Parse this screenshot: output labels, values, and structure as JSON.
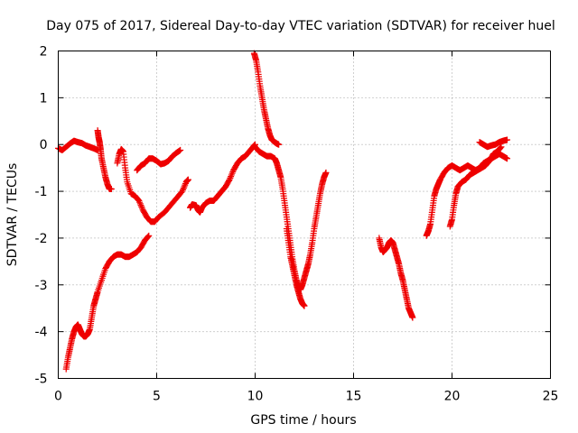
{
  "chart_data": {
    "type": "scatter",
    "title": "Day 075 of 2017, Sidereal Day-to-day VTEC variation (SDTVAR) for receiver huel",
    "xlabel": "GPS time / hours",
    "ylabel": "SDTVAR / TECUs",
    "xlim": [
      0,
      25
    ],
    "ylim": [
      -5,
      2
    ],
    "xticks": [
      "0",
      "5",
      "10",
      "15",
      "20",
      "25"
    ],
    "yticks": [
      "-5",
      "-4",
      "-3",
      "-2",
      "-1",
      "0",
      "1",
      "2"
    ],
    "grid": true,
    "marker": "plus",
    "color": "#ee0000",
    "series": [
      {
        "points": [
          [
            0.0,
            -0.08
          ],
          [
            0.2,
            -0.12
          ],
          [
            0.4,
            -0.05
          ],
          [
            0.6,
            0.02
          ],
          [
            0.8,
            0.08
          ],
          [
            1.0,
            0.05
          ],
          [
            1.2,
            0.03
          ],
          [
            1.4,
            -0.02
          ],
          [
            1.6,
            -0.05
          ],
          [
            1.8,
            -0.08
          ],
          [
            2.0,
            -0.12
          ]
        ]
      },
      {
        "points": [
          [
            2.0,
            0.3
          ],
          [
            2.05,
            0.15
          ],
          [
            2.1,
            0.05
          ],
          [
            2.15,
            -0.1
          ],
          [
            2.2,
            -0.3
          ],
          [
            2.3,
            -0.5
          ],
          [
            2.4,
            -0.7
          ],
          [
            2.5,
            -0.85
          ],
          [
            2.6,
            -0.95
          ],
          [
            2.7,
            -0.95
          ]
        ]
      },
      {
        "points": [
          [
            3.0,
            -0.4
          ],
          [
            3.1,
            -0.2
          ],
          [
            3.2,
            -0.1
          ],
          [
            3.3,
            -0.15
          ],
          [
            3.4,
            -0.5
          ],
          [
            3.5,
            -0.8
          ],
          [
            3.7,
            -1.05
          ],
          [
            3.9,
            -1.1
          ],
          [
            4.1,
            -1.2
          ],
          [
            4.3,
            -1.4
          ],
          [
            4.5,
            -1.55
          ],
          [
            4.7,
            -1.65
          ],
          [
            4.9,
            -1.65
          ],
          [
            5.1,
            -1.55
          ],
          [
            5.4,
            -1.45
          ],
          [
            5.7,
            -1.3
          ],
          [
            6.0,
            -1.15
          ],
          [
            6.3,
            -1.0
          ],
          [
            6.5,
            -0.8
          ],
          [
            6.6,
            -0.75
          ]
        ]
      },
      {
        "points": [
          [
            4.0,
            -0.55
          ],
          [
            4.2,
            -0.45
          ],
          [
            4.4,
            -0.4
          ],
          [
            4.6,
            -0.3
          ],
          [
            4.8,
            -0.3
          ],
          [
            5.0,
            -0.35
          ],
          [
            5.2,
            -0.42
          ],
          [
            5.4,
            -0.4
          ],
          [
            5.6,
            -0.35
          ],
          [
            5.8,
            -0.25
          ],
          [
            6.0,
            -0.18
          ],
          [
            6.2,
            -0.12
          ]
        ]
      },
      {
        "points": [
          [
            0.4,
            -4.8
          ],
          [
            0.5,
            -4.55
          ],
          [
            0.6,
            -4.35
          ],
          [
            0.7,
            -4.15
          ],
          [
            0.8,
            -4.0
          ],
          [
            0.9,
            -3.9
          ],
          [
            1.0,
            -3.85
          ],
          [
            1.1,
            -3.95
          ],
          [
            1.2,
            -4.05
          ],
          [
            1.3,
            -4.1
          ],
          [
            1.4,
            -4.1
          ],
          [
            1.5,
            -4.05
          ],
          [
            1.6,
            -3.95
          ],
          [
            1.7,
            -3.7
          ],
          [
            1.8,
            -3.45
          ],
          [
            1.9,
            -3.3
          ],
          [
            2.0,
            -3.15
          ],
          [
            2.2,
            -2.9
          ],
          [
            2.4,
            -2.65
          ],
          [
            2.6,
            -2.5
          ],
          [
            2.8,
            -2.4
          ],
          [
            3.0,
            -2.35
          ],
          [
            3.2,
            -2.35
          ],
          [
            3.4,
            -2.4
          ],
          [
            3.6,
            -2.4
          ],
          [
            3.8,
            -2.35
          ],
          [
            4.0,
            -2.3
          ],
          [
            4.2,
            -2.2
          ],
          [
            4.4,
            -2.05
          ],
          [
            4.6,
            -1.95
          ]
        ]
      },
      {
        "points": [
          [
            6.7,
            -1.35
          ],
          [
            6.8,
            -1.28
          ],
          [
            7.0,
            -1.3
          ],
          [
            7.1,
            -1.4
          ],
          [
            7.2,
            -1.45
          ],
          [
            7.3,
            -1.35
          ],
          [
            7.5,
            -1.25
          ],
          [
            7.7,
            -1.2
          ],
          [
            7.9,
            -1.2
          ],
          [
            8.1,
            -1.1
          ],
          [
            8.3,
            -1.0
          ],
          [
            8.5,
            -0.9
          ],
          [
            8.7,
            -0.75
          ],
          [
            8.9,
            -0.55
          ],
          [
            9.1,
            -0.4
          ],
          [
            9.3,
            -0.3
          ],
          [
            9.5,
            -0.25
          ],
          [
            9.7,
            -0.15
          ],
          [
            9.9,
            -0.05
          ],
          [
            10.0,
            0.0
          ]
        ]
      },
      {
        "points": [
          [
            10.0,
            -0.05
          ],
          [
            10.2,
            -0.15
          ],
          [
            10.4,
            -0.2
          ],
          [
            10.6,
            -0.25
          ],
          [
            10.8,
            -0.25
          ],
          [
            11.0,
            -0.3
          ],
          [
            11.1,
            -0.4
          ],
          [
            11.2,
            -0.55
          ],
          [
            11.3,
            -0.7
          ],
          [
            11.4,
            -0.95
          ],
          [
            11.5,
            -1.25
          ],
          [
            11.6,
            -1.55
          ],
          [
            11.7,
            -1.85
          ],
          [
            11.8,
            -2.15
          ],
          [
            11.9,
            -2.45
          ],
          [
            12.0,
            -2.7
          ],
          [
            12.1,
            -2.9
          ],
          [
            12.2,
            -3.05
          ],
          [
            12.3,
            -3.1
          ],
          [
            12.4,
            -3.0
          ],
          [
            12.5,
            -2.85
          ],
          [
            12.6,
            -2.7
          ],
          [
            12.7,
            -2.55
          ],
          [
            12.8,
            -2.35
          ],
          [
            12.9,
            -2.1
          ],
          [
            13.0,
            -1.8
          ],
          [
            13.1,
            -1.55
          ],
          [
            13.2,
            -1.3
          ],
          [
            13.3,
            -1.05
          ],
          [
            13.4,
            -0.85
          ],
          [
            13.5,
            -0.7
          ],
          [
            13.6,
            -0.6
          ]
        ]
      },
      {
        "points": [
          [
            9.95,
            1.95
          ],
          [
            10.05,
            1.8
          ],
          [
            10.15,
            1.55
          ],
          [
            10.25,
            1.25
          ],
          [
            10.35,
            1.0
          ],
          [
            10.45,
            0.75
          ],
          [
            10.55,
            0.55
          ],
          [
            10.65,
            0.35
          ],
          [
            10.75,
            0.2
          ],
          [
            10.85,
            0.1
          ],
          [
            11.0,
            0.05
          ],
          [
            11.1,
            0.02
          ],
          [
            11.2,
            0.0
          ]
        ]
      },
      {
        "points": [
          [
            11.6,
            -1.8
          ],
          [
            11.7,
            -2.1
          ],
          [
            11.8,
            -2.4
          ],
          [
            11.9,
            -2.6
          ],
          [
            12.0,
            -2.8
          ],
          [
            12.1,
            -3.0
          ],
          [
            12.2,
            -3.15
          ],
          [
            12.3,
            -3.3
          ],
          [
            12.4,
            -3.4
          ],
          [
            12.5,
            -3.45
          ]
        ]
      },
      {
        "points": [
          [
            16.3,
            -2.0
          ],
          [
            16.4,
            -2.2
          ],
          [
            16.5,
            -2.3
          ],
          [
            16.6,
            -2.25
          ],
          [
            16.7,
            -2.2
          ],
          [
            16.8,
            -2.1
          ],
          [
            16.9,
            -2.05
          ],
          [
            17.0,
            -2.1
          ],
          [
            17.1,
            -2.25
          ],
          [
            17.2,
            -2.4
          ],
          [
            17.3,
            -2.55
          ],
          [
            17.4,
            -2.75
          ],
          [
            17.5,
            -2.9
          ],
          [
            17.6,
            -3.1
          ],
          [
            17.7,
            -3.3
          ],
          [
            17.8,
            -3.5
          ],
          [
            17.9,
            -3.6
          ],
          [
            18.0,
            -3.7
          ]
        ]
      },
      {
        "points": [
          [
            18.7,
            -1.95
          ],
          [
            18.8,
            -1.85
          ],
          [
            18.9,
            -1.7
          ],
          [
            19.0,
            -1.4
          ],
          [
            19.1,
            -1.1
          ],
          [
            19.2,
            -0.95
          ],
          [
            19.3,
            -0.85
          ],
          [
            19.4,
            -0.75
          ],
          [
            19.6,
            -0.6
          ],
          [
            19.8,
            -0.5
          ],
          [
            20.0,
            -0.45
          ],
          [
            20.2,
            -0.5
          ],
          [
            20.4,
            -0.55
          ],
          [
            20.6,
            -0.5
          ],
          [
            20.8,
            -0.45
          ],
          [
            21.0,
            -0.5
          ],
          [
            21.2,
            -0.55
          ],
          [
            21.4,
            -0.5
          ],
          [
            21.6,
            -0.4
          ],
          [
            21.8,
            -0.35
          ],
          [
            22.0,
            -0.3
          ],
          [
            22.2,
            -0.25
          ],
          [
            22.4,
            -0.2
          ],
          [
            22.6,
            -0.25
          ],
          [
            22.8,
            -0.3
          ]
        ]
      },
      {
        "points": [
          [
            19.9,
            -1.75
          ],
          [
            20.0,
            -1.6
          ],
          [
            20.1,
            -1.3
          ],
          [
            20.2,
            -1.05
          ],
          [
            20.3,
            -0.9
          ],
          [
            20.5,
            -0.8
          ],
          [
            20.7,
            -0.75
          ],
          [
            20.9,
            -0.65
          ],
          [
            21.1,
            -0.6
          ],
          [
            21.3,
            -0.55
          ],
          [
            21.5,
            -0.5
          ],
          [
            21.7,
            -0.45
          ],
          [
            21.9,
            -0.35
          ],
          [
            22.1,
            -0.2
          ],
          [
            22.3,
            -0.15
          ],
          [
            22.5,
            -0.05
          ]
        ]
      },
      {
        "points": [
          [
            21.4,
            0.05
          ],
          [
            21.6,
            0.0
          ],
          [
            21.8,
            -0.05
          ],
          [
            22.0,
            -0.02
          ],
          [
            22.2,
            0.0
          ],
          [
            22.4,
            0.05
          ],
          [
            22.6,
            0.08
          ],
          [
            22.8,
            0.1
          ]
        ]
      }
    ]
  }
}
